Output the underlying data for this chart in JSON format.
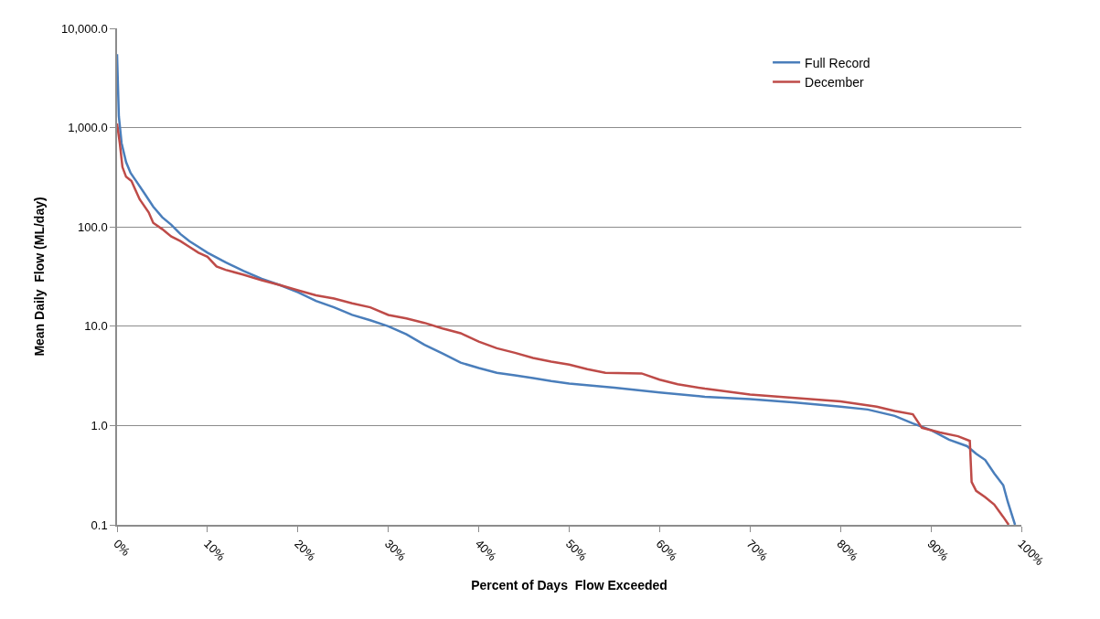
{
  "chart_data": {
    "type": "line",
    "xlabel": "Percent of Days  Flow Exceeded",
    "ylabel": "Mean Daily  Flow (ML/day)",
    "log": "y",
    "grid": "y",
    "legend": "top right",
    "marker": "none",
    "line_style": "solid",
    "xlim": [
      0,
      100
    ],
    "xticks": [
      {
        "value": 0,
        "label": "0%"
      },
      {
        "value": 10,
        "label": "10%"
      },
      {
        "value": 20,
        "label": "20%"
      },
      {
        "value": 30,
        "label": "30%"
      },
      {
        "value": 40,
        "label": "40%"
      },
      {
        "value": 50,
        "label": "50%"
      },
      {
        "value": 60,
        "label": "60%"
      },
      {
        "value": 70,
        "label": "70%"
      },
      {
        "value": 80,
        "label": "80%"
      },
      {
        "value": 90,
        "label": "90%"
      },
      {
        "value": 100,
        "label": "100%"
      }
    ],
    "ylim": [
      0.1,
      10000
    ],
    "yticks": [
      {
        "value": 0.1,
        "label": "0.1"
      },
      {
        "value": 1,
        "label": "1.0"
      },
      {
        "value": 10,
        "label": "10.0"
      },
      {
        "value": 100,
        "label": "100.0"
      },
      {
        "value": 1000,
        "label": "1,000.0"
      },
      {
        "value": 10000,
        "label": "10,000.0"
      }
    ],
    "series": [
      {
        "name": "Full Record",
        "color": "#4a7ebb",
        "x": [
          0,
          0.2,
          0.5,
          1,
          1.5,
          2,
          3,
          4,
          5,
          6,
          7,
          8,
          9,
          10,
          12,
          14,
          16,
          18,
          20,
          22,
          24,
          26,
          28,
          30,
          32,
          34,
          36,
          38,
          40,
          42,
          44,
          46,
          48,
          50,
          55,
          60,
          65,
          70,
          75,
          80,
          83,
          86,
          88,
          90,
          92,
          94,
          95,
          96,
          97,
          98,
          98.5,
          99.3
        ],
        "values": [
          5500,
          1300,
          700,
          450,
          350,
          300,
          220,
          160,
          125,
          105,
          85,
          72,
          63,
          55,
          44,
          36,
          30,
          26,
          22,
          18,
          15.5,
          13,
          11.5,
          10,
          8.3,
          6.5,
          5.3,
          4.3,
          3.8,
          3.4,
          3.2,
          3.0,
          2.8,
          2.65,
          2.4,
          2.15,
          1.95,
          1.85,
          1.7,
          1.55,
          1.45,
          1.25,
          1.05,
          0.9,
          0.72,
          0.62,
          0.52,
          0.45,
          0.33,
          0.25,
          0.17,
          0.1
        ]
      },
      {
        "name": "December",
        "color": "#be4b48",
        "x": [
          0,
          0.3,
          0.6,
          1,
          1.6,
          2,
          2.5,
          3.5,
          4,
          5,
          6,
          7,
          8,
          9,
          10,
          11,
          12,
          14,
          16,
          18,
          20,
          22,
          24,
          26,
          28,
          30,
          32,
          34,
          36,
          38,
          40,
          42,
          44,
          46,
          48,
          50,
          52,
          54,
          58,
          60,
          62,
          65,
          70,
          75,
          80,
          84,
          86,
          88,
          89,
          91,
          93,
          94.3,
          94.5,
          95,
          96,
          97,
          98,
          98.6
        ],
        "values": [
          1100,
          700,
          400,
          320,
          290,
          240,
          190,
          140,
          110,
          95,
          80,
          72,
          63,
          55,
          50,
          40,
          37,
          33,
          29,
          26,
          23,
          20.5,
          19,
          17,
          15.5,
          13,
          12,
          10.8,
          9.5,
          8.5,
          7.0,
          6.0,
          5.4,
          4.8,
          4.4,
          4.1,
          3.7,
          3.4,
          3.35,
          2.9,
          2.6,
          2.35,
          2.05,
          1.9,
          1.75,
          1.55,
          1.4,
          1.3,
          0.95,
          0.85,
          0.78,
          0.7,
          0.27,
          0.22,
          0.19,
          0.16,
          0.12,
          0.1
        ]
      }
    ]
  }
}
